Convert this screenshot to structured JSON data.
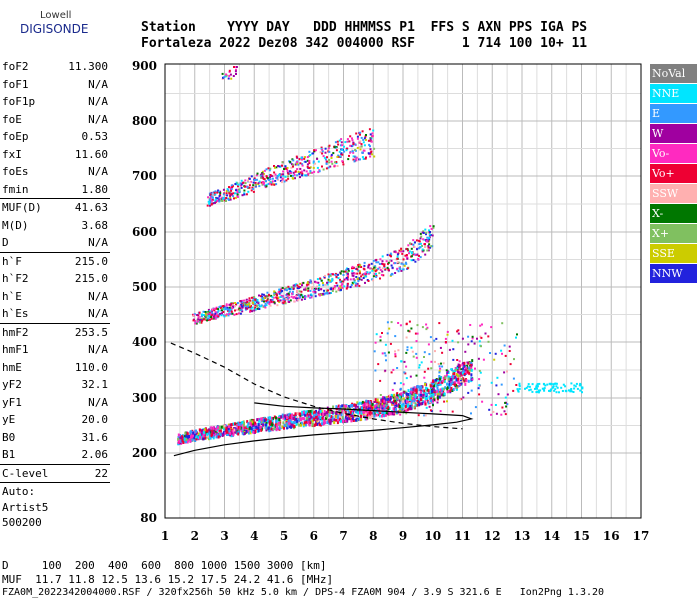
{
  "logo": {
    "lowell": "Lowell",
    "digisonde": "DIGISONDE"
  },
  "header": {
    "line1": "Station    YYYY DAY   DDD HHMMSS P1  FFS S AXN PPS IGA PS",
    "line2": "Fortaleza 2022 Dez08 342 004000 RSF      1 714 100 10+ 11"
  },
  "params": [
    {
      "name": "foF2",
      "value": "11.300"
    },
    {
      "name": "foF1",
      "value": "N/A"
    },
    {
      "name": "foF1p",
      "value": "N/A"
    },
    {
      "name": "foE",
      "value": "N/A"
    },
    {
      "name": "foEp",
      "value": "0.53"
    },
    {
      "name": "fxI",
      "value": "11.60"
    },
    {
      "name": "foEs",
      "value": "N/A"
    },
    {
      "name": "fmin",
      "value": "1.80"
    },
    {
      "sep": true
    },
    {
      "name": "MUF(D)",
      "value": "41.63"
    },
    {
      "name": "M(D)",
      "value": "3.68"
    },
    {
      "name": "D",
      "value": "N/A"
    },
    {
      "sep": true
    },
    {
      "name": "h`F",
      "value": "215.0"
    },
    {
      "name": "h`F2",
      "value": "215.0"
    },
    {
      "name": "h`E",
      "value": "N/A"
    },
    {
      "name": "h`Es",
      "value": "N/A"
    },
    {
      "sep": true
    },
    {
      "name": "hmF2",
      "value": "253.5"
    },
    {
      "name": "hmF1",
      "value": "N/A"
    },
    {
      "name": "hmE",
      "value": "110.0"
    },
    {
      "name": "yF2",
      "value": "32.1"
    },
    {
      "name": "yF1",
      "value": "N/A"
    },
    {
      "name": "yE",
      "value": "20.0"
    },
    {
      "name": "B0",
      "value": "31.6"
    },
    {
      "name": "B1",
      "value": "2.06"
    },
    {
      "sep": true
    },
    {
      "name": "C-level",
      "value": "22"
    },
    {
      "sep": true
    }
  ],
  "auto": {
    "line1": "Auto:",
    "line2": "Artist5",
    "line3": "500200"
  },
  "legend": [
    {
      "label": "NoVal",
      "color": "#808080"
    },
    {
      "label": "NNE",
      "color": "#00e5ff"
    },
    {
      "label": "E",
      "color": "#3399ff"
    },
    {
      "label": "W",
      "color": "#a000a0"
    },
    {
      "label": "Vo-",
      "color": "#ff2ac0"
    },
    {
      "label": "Vo+",
      "color": "#ee0033"
    },
    {
      "label": "SSW",
      "color": "#ffb0b0"
    },
    {
      "label": "X-",
      "color": "#007700"
    },
    {
      "label": "X+",
      "color": "#80c060"
    },
    {
      "label": "SSE",
      "color": "#cccc00"
    },
    {
      "label": "NNW",
      "color": "#2222dd"
    }
  ],
  "bottom": {
    "d_line": "D     100  200  400  600  800 1000 1500 3000 [km]",
    "muf_line": "MUF  11.7 11.8 12.5 13.6 15.2 17.5 24.2 41.6 [MHz]"
  },
  "footer": "FZA0M_2022342004000.RSF / 320fx256h 50 kHz 5.0 km / DPS-4 FZA0M 904 / 3.9 S 321.6 E   Ion2Png 1.3.20",
  "chart_data": {
    "type": "scatter",
    "title": "",
    "xlabel": "",
    "ylabel": "",
    "xlim": [
      1,
      17
    ],
    "ylim": [
      80,
      900
    ],
    "x_ticks": [
      1,
      2,
      3,
      4,
      5,
      6,
      7,
      8,
      9,
      10,
      11,
      12,
      13,
      14,
      15,
      16,
      17
    ],
    "y_ticks": [
      80,
      200,
      300,
      400,
      500,
      600,
      700,
      800,
      900
    ],
    "grid": true,
    "legend_position": "right",
    "traces": [
      {
        "name": "F layer trace",
        "points": [
          [
            1.4,
            225
          ],
          [
            2,
            232
          ],
          [
            3,
            240
          ],
          [
            4,
            248
          ],
          [
            5,
            256
          ],
          [
            6,
            262
          ],
          [
            7,
            270
          ],
          [
            8,
            278
          ],
          [
            9,
            290
          ],
          [
            10,
            310
          ],
          [
            10.8,
            335
          ],
          [
            11.3,
            345
          ]
        ]
      },
      {
        "name": "2nd hop",
        "points": [
          [
            1.9,
            440
          ],
          [
            3,
            455
          ],
          [
            4,
            468
          ],
          [
            5,
            482
          ],
          [
            6,
            495
          ],
          [
            7,
            510
          ],
          [
            8,
            525
          ],
          [
            9,
            545
          ],
          [
            10,
            590
          ]
        ]
      },
      {
        "name": "3rd hop",
        "points": [
          [
            2.4,
            655
          ],
          [
            3,
            665
          ],
          [
            4,
            685
          ],
          [
            5,
            705
          ],
          [
            6,
            722
          ],
          [
            7,
            740
          ],
          [
            8,
            755
          ]
        ]
      },
      {
        "name": "4th hop",
        "points": [
          [
            2.9,
            880
          ],
          [
            3.4,
            890
          ]
        ]
      }
    ],
    "profile_curve": {
      "name": "electron density profile",
      "points": [
        [
          1.3,
          195
        ],
        [
          2,
          205
        ],
        [
          3,
          215
        ],
        [
          4,
          222
        ],
        [
          5,
          228
        ],
        [
          6,
          233
        ],
        [
          7,
          237
        ],
        [
          8,
          241
        ],
        [
          9,
          246
        ],
        [
          10,
          251
        ],
        [
          10.8,
          256
        ],
        [
          11.3,
          262
        ],
        [
          11.0,
          268
        ],
        [
          10,
          271
        ],
        [
          9,
          274
        ],
        [
          8,
          277
        ],
        [
          7,
          280
        ],
        [
          6,
          282
        ],
        [
          5,
          285
        ],
        [
          4,
          291
        ]
      ]
    },
    "dashed_curve": {
      "name": "model trace",
      "points": [
        [
          1.2,
          398
        ],
        [
          2,
          380
        ],
        [
          3,
          355
        ],
        [
          4,
          325
        ],
        [
          5,
          302
        ],
        [
          6,
          285
        ],
        [
          7,
          272
        ],
        [
          8,
          262
        ],
        [
          9,
          254
        ],
        [
          10,
          248
        ],
        [
          11,
          244
        ]
      ]
    }
  }
}
